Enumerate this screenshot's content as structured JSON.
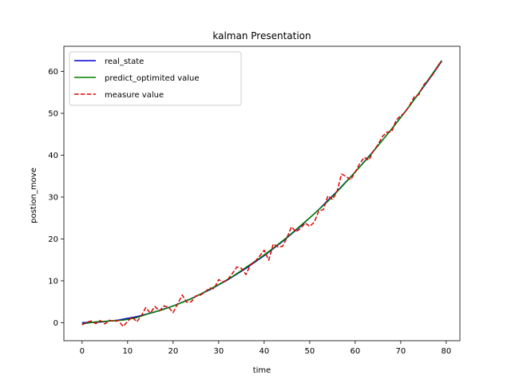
{
  "chart_data": {
    "type": "line",
    "title": "kalman Presentation",
    "xlabel": "time",
    "ylabel": "postion_move",
    "xlim": [
      -4,
      83
    ],
    "ylim": [
      -4.3,
      66
    ],
    "xticks": [
      0,
      10,
      20,
      30,
      40,
      50,
      60,
      70,
      80
    ],
    "yticks": [
      0,
      10,
      20,
      30,
      40,
      50,
      60
    ],
    "legend_position": "upper-left",
    "grid": false,
    "series": [
      {
        "name": "real_state",
        "color": "#0000cc",
        "style": "solid",
        "x": [
          0,
          4,
          8,
          12,
          16,
          20,
          24,
          28,
          32,
          36,
          40,
          44,
          48,
          52,
          56,
          60,
          64,
          68,
          72,
          76,
          79
        ],
        "y": [
          0,
          0.16,
          0.64,
          1.44,
          2.56,
          4.0,
          5.76,
          7.84,
          10.24,
          12.96,
          16.0,
          19.36,
          23.04,
          27.04,
          31.36,
          36.0,
          40.96,
          46.24,
          51.84,
          57.76,
          62.41
        ]
      },
      {
        "name": "predict_optimited value",
        "color": "#008000",
        "style": "solid",
        "x": [
          0,
          3,
          6,
          9,
          12,
          15,
          18,
          21,
          24,
          27,
          30,
          33,
          36,
          39,
          42,
          45,
          48,
          51,
          54,
          57,
          60,
          63,
          66,
          69,
          72,
          75,
          79
        ],
        "y": [
          -0.3,
          0.2,
          0.4,
          0.6,
          1.2,
          2.3,
          3.2,
          4.4,
          5.7,
          7.4,
          9.1,
          11.0,
          13.2,
          15.4,
          17.8,
          20.4,
          23.2,
          26.0,
          29.0,
          32.4,
          36.0,
          39.6,
          43.6,
          47.6,
          51.8,
          56.4,
          62.6
        ]
      },
      {
        "name": "measure value",
        "color": "#dd0000",
        "style": "dashed",
        "x": [
          0,
          1,
          2,
          3,
          4,
          5,
          6,
          7,
          8,
          9,
          10,
          11,
          12,
          13,
          14,
          15,
          16,
          17,
          18,
          19,
          20,
          21,
          22,
          23,
          24,
          25,
          26,
          27,
          28,
          29,
          30,
          31,
          32,
          33,
          34,
          35,
          36,
          37,
          38,
          39,
          40,
          41,
          42,
          43,
          44,
          45,
          46,
          47,
          48,
          49,
          50,
          51,
          52,
          53,
          54,
          55,
          56,
          57,
          58,
          59,
          60,
          61,
          62,
          63,
          64,
          65,
          66,
          67,
          68,
          69,
          70,
          71,
          72,
          73,
          74,
          75,
          76,
          77,
          78,
          79
        ],
        "y": [
          -0.5,
          0.1,
          0.4,
          -0.2,
          0.5,
          -0.3,
          0.6,
          0.3,
          0.5,
          -0.9,
          0.3,
          1.4,
          0.2,
          1.6,
          3.6,
          2.3,
          3.9,
          2.8,
          4.0,
          3.7,
          2.4,
          4.5,
          6.6,
          4.9,
          5.0,
          6.4,
          6.6,
          7.3,
          8.3,
          8.1,
          10.3,
          9.7,
          10.3,
          11.7,
          13.3,
          13.0,
          11.5,
          13.8,
          14.6,
          15.9,
          17.3,
          14.9,
          18.8,
          18.1,
          18.2,
          20.3,
          22.9,
          21.7,
          22.5,
          23.8,
          23.0,
          24.0,
          26.7,
          27.0,
          30.3,
          29.4,
          31.3,
          35.5,
          34.9,
          34.1,
          36.0,
          38.0,
          39.5,
          38.8,
          41.0,
          42.5,
          44.5,
          45.5,
          45.6,
          48.4,
          49.4,
          50.3,
          52.0,
          54.0,
          54.5,
          56.7,
          57.9,
          59.2,
          61.0,
          62.6
        ]
      }
    ]
  }
}
